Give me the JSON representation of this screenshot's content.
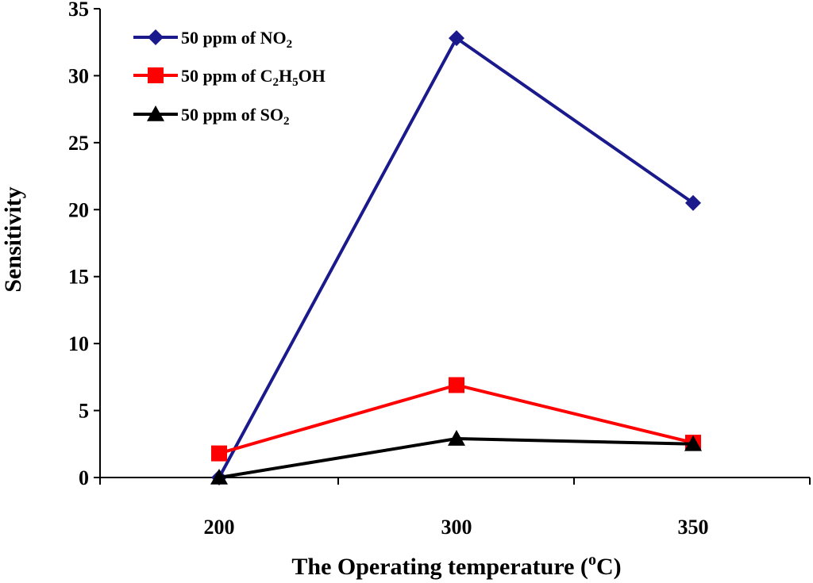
{
  "chart_data": {
    "type": "line",
    "title": "",
    "xlabel": "The Operating temperature (°C)",
    "xlabel_parts": {
      "prefix": "The Operating temperature (",
      "sup": "o",
      "unit": "C",
      "suffix": ")"
    },
    "ylabel": "Sensitivity",
    "x_categories": [
      "200",
      "300",
      "350"
    ],
    "ylim": [
      0,
      35
    ],
    "y_ticks": [
      0,
      5,
      10,
      15,
      20,
      25,
      30,
      35
    ],
    "grid": false,
    "legend_position": "top-left",
    "series": [
      {
        "name": "50 ppm of NO2",
        "name_parts": [
          "50 ppm of NO",
          {
            "sub": "2"
          }
        ],
        "color": "#1a1a8c",
        "marker": "diamond",
        "values": [
          0,
          32.8,
          20.5
        ]
      },
      {
        "name": "50 ppm of C2H5OH",
        "name_parts": [
          "50 ppm of C",
          {
            "sub": "2"
          },
          "H",
          {
            "sub": "5"
          },
          "OH"
        ],
        "color": "#ff0000",
        "marker": "square",
        "values": [
          1.8,
          6.9,
          2.6
        ]
      },
      {
        "name": "50 ppm of SO2",
        "name_parts": [
          "50 ppm of SO",
          {
            "sub": "2"
          }
        ],
        "color": "#000000",
        "marker": "triangle",
        "values": [
          0,
          2.9,
          2.5
        ]
      }
    ]
  }
}
